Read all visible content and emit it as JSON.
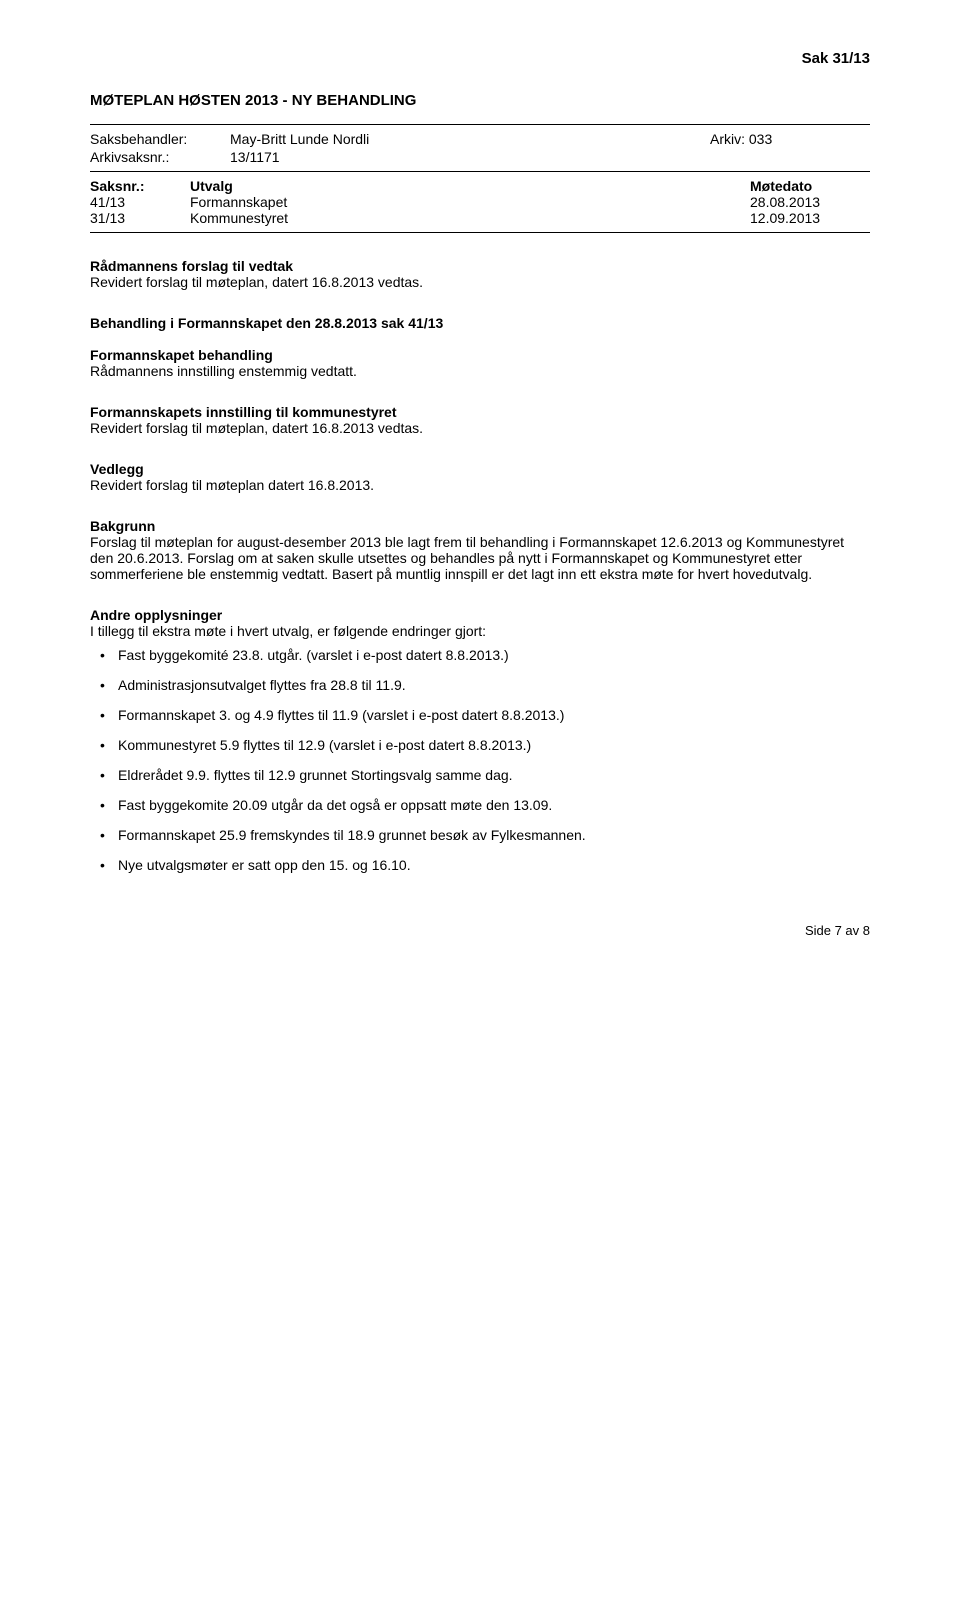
{
  "header": {
    "caseRef": "Sak  31/13"
  },
  "docTitle": "MØTEPLAN HØSTEN 2013 - NY BEHANDLING",
  "meta": {
    "handlerLabel": "Saksbehandler:",
    "handlerValue": "May-Britt Lunde Nordli",
    "arkivLabel": "Arkiv: 033",
    "saksnrLabel": "Arkivsaksnr.:",
    "saksnrValue": "13/1171"
  },
  "caseTable": {
    "headers": {
      "saksnr": "Saksnr.:",
      "utvalg": "Utvalg",
      "date": "Møtedato"
    },
    "rows": [
      {
        "saksnr": "41/13",
        "utvalg": "Formannskapet",
        "date": "28.08.2013"
      },
      {
        "saksnr": "31/13",
        "utvalg": "Kommunestyret",
        "date": "12.09.2013"
      }
    ]
  },
  "sections": {
    "forslag": {
      "title": "Rådmannens forslag til vedtak",
      "body": "Revidert forslag til møteplan, datert 16.8.2013 vedtas."
    },
    "behandling": {
      "title": "Behandling i Formannskapet den 28.8.2013 sak 41/13",
      "subTitle": "Formannskapet behandling",
      "body": "Rådmannens innstilling enstemmig vedtatt."
    },
    "innstilling": {
      "title": "Formannskapets innstilling til kommunestyret",
      "body": "Revidert forslag til møteplan, datert 16.8.2013 vedtas."
    },
    "vedlegg": {
      "title": "Vedlegg",
      "body": "Revidert forslag til møteplan datert 16.8.2013."
    },
    "bakgrunn": {
      "title": "Bakgrunn",
      "body": "Forslag til møteplan for august-desember 2013 ble lagt frem til behandling i Formannskapet 12.6.2013 og Kommunestyret den 20.6.2013. Forslag om at saken skulle utsettes og behandles på nytt i Formannskapet og Kommunestyret etter sommerferiene ble enstemmig vedtatt. Basert på muntlig innspill er det lagt inn ett ekstra møte for hvert hovedutvalg."
    },
    "andre": {
      "title": "Andre opplysninger",
      "intro": "I tillegg til ekstra møte i hvert utvalg, er følgende endringer gjort:",
      "bullets": [
        "Fast byggekomité 23.8. utgår. (varslet i e-post datert 8.8.2013.)",
        "Administrasjonsutvalget flyttes fra 28.8 til 11.9.",
        "Formannskapet 3. og 4.9 flyttes til 11.9 (varslet i e-post datert 8.8.2013.)",
        "Kommunestyret 5.9 flyttes til 12.9 (varslet i e-post datert 8.8.2013.)",
        "Eldrerådet 9.9. flyttes til 12.9 grunnet Stortingsvalg samme dag.",
        "Fast byggekomite 20.09 utgår da det også er oppsatt møte den 13.09.",
        "Formannskapet 25.9 fremskyndes til 18.9 grunnet besøk av Fylkesmannen.",
        "Nye utvalgsmøter er satt opp den 15. og 16.10."
      ]
    }
  },
  "footer": {
    "pageText": "Side 7 av 8"
  }
}
